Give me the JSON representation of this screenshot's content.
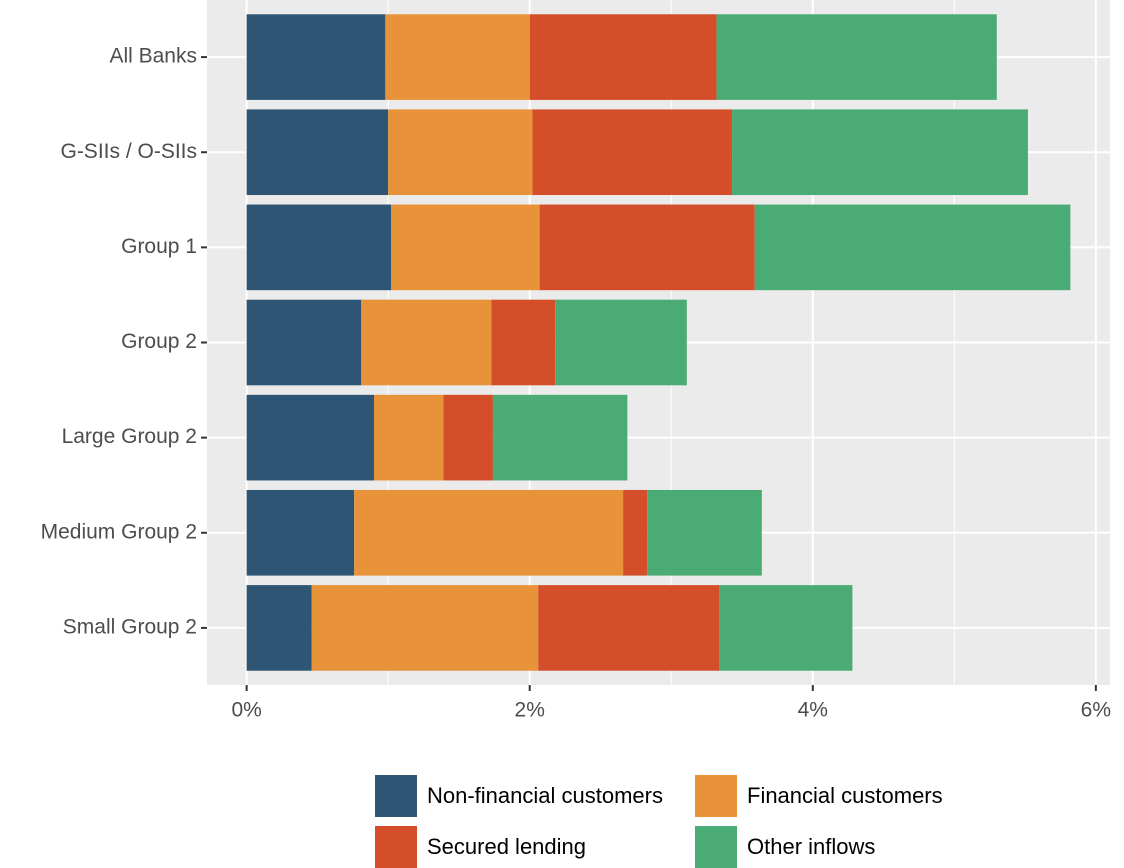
{
  "chart_data": {
    "type": "stacked-barh",
    "categories": [
      "All Banks",
      "G-SIIs / O-SIIs",
      "Group 1",
      "Group 2",
      "Large Group 2",
      "Medium Group 2",
      "Small Group 2"
    ],
    "series": [
      {
        "name": "Non-financial customers",
        "color": "#2e5573",
        "values": [
          0.98,
          1.0,
          1.02,
          0.81,
          0.9,
          0.76,
          0.46
        ]
      },
      {
        "name": "Financial customers",
        "color": "#e8923a",
        "values": [
          1.02,
          1.02,
          1.05,
          0.92,
          0.49,
          1.9,
          1.6
        ]
      },
      {
        "name": "Secured lending",
        "color": "#d44e2a",
        "values": [
          1.32,
          1.41,
          1.52,
          0.45,
          0.35,
          0.17,
          1.28
        ]
      },
      {
        "name": "Other inflows",
        "color": "#4aab74",
        "values": [
          1.98,
          2.09,
          2.23,
          0.93,
          0.95,
          0.81,
          0.94
        ]
      }
    ],
    "xlim": [
      -0.28,
      6.1
    ],
    "xticks": [
      {
        "value": 0,
        "label": "0%"
      },
      {
        "value": 2,
        "label": "2%"
      },
      {
        "value": 4,
        "label": "4%"
      },
      {
        "value": 6,
        "label": "6%"
      }
    ],
    "xminor": [
      1,
      3,
      5
    ],
    "grid": true,
    "legend": "bottom"
  }
}
